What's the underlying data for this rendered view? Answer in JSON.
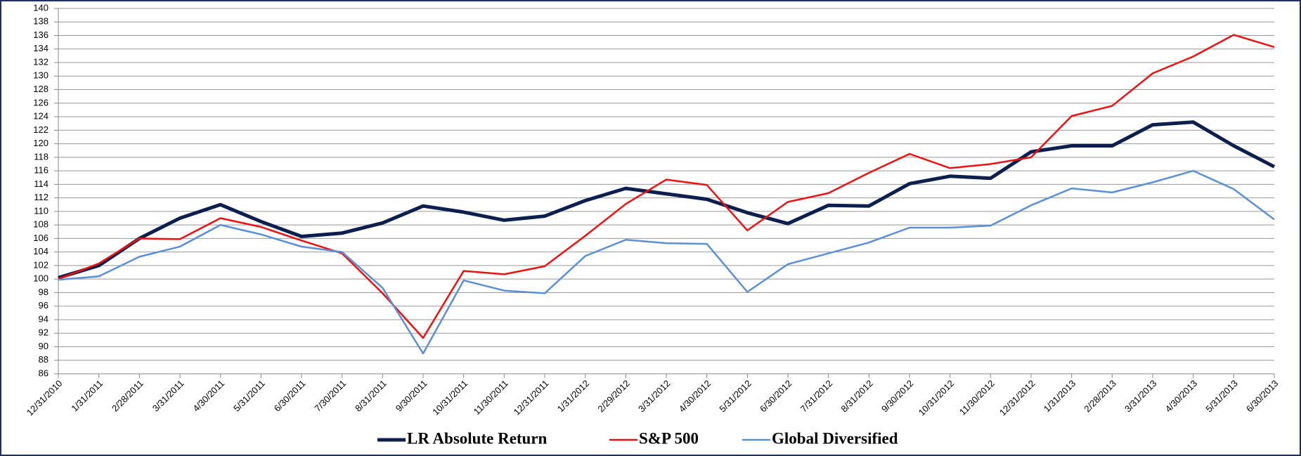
{
  "chart_data": {
    "type": "line",
    "categories": [
      "12/31/2010",
      "1/31/2011",
      "2/28/2011",
      "3/31/2011",
      "4/30/2011",
      "5/31/2011",
      "6/30/2011",
      "7/30/2011",
      "8/31/2011",
      "9/30/2011",
      "10/31/2011",
      "11/30/2011",
      "12/31/2011",
      "1/31/2012",
      "2/29/2012",
      "3/31/2012",
      "4/30/2012",
      "5/31/2012",
      "6/30/2012",
      "7/31/2012",
      "8/31/2012",
      "9/30/2012",
      "10/31/2012",
      "11/30/2012",
      "12/31/2012",
      "1/31/2013",
      "2/28/2013",
      "3/31/2013",
      "4/30/2013",
      "5/31/2013",
      "6/30/2013"
    ],
    "series": [
      {
        "name": "LR Absolute Return",
        "color": "#0d1f4f",
        "width": 5,
        "values": [
          100.2,
          102,
          106,
          109,
          111,
          108.5,
          106.3,
          106.8,
          108.3,
          110.8,
          109.9,
          108.7,
          109.3,
          111.6,
          113.4,
          112.6,
          111.8,
          109.8,
          108.2,
          110.9,
          110.8,
          114.1,
          115.2,
          114.9,
          118.8,
          119.7,
          119.7,
          122.8,
          123.2,
          119.7,
          116.6
        ]
      },
      {
        "name": "S&P 500",
        "color": "#ee1111",
        "width": 2.5,
        "values": [
          100,
          102.3,
          106,
          105.9,
          109,
          107.7,
          105.7,
          103.8,
          97.9,
          91.3,
          101.2,
          100.7,
          101.9,
          106.4,
          111.1,
          114.7,
          113.9,
          107.2,
          111.4,
          112.7,
          115.7,
          118.5,
          116.4,
          117,
          118,
          124.1,
          125.6,
          130.4,
          132.9,
          136.1,
          134.3
        ]
      },
      {
        "name": "Global Diversified",
        "color": "#5b8fd6",
        "width": 2.5,
        "values": [
          99.9,
          100.4,
          103.3,
          104.8,
          108,
          106.6,
          104.8,
          104,
          98.7,
          89,
          99.8,
          98.3,
          97.9,
          103.4,
          105.8,
          105.3,
          105.2,
          98.1,
          102.2,
          103.8,
          105.4,
          107.6,
          107.6,
          107.9,
          110.9,
          113.4,
          112.8,
          114.3,
          116,
          113.3,
          108.8
        ]
      }
    ],
    "ylim": [
      86,
      140
    ],
    "yticks": [
      86,
      88,
      90,
      92,
      94,
      96,
      98,
      100,
      102,
      104,
      106,
      108,
      110,
      112,
      114,
      116,
      118,
      120,
      122,
      124,
      126,
      128,
      130,
      132,
      134,
      136,
      138,
      140
    ],
    "grid": true
  }
}
